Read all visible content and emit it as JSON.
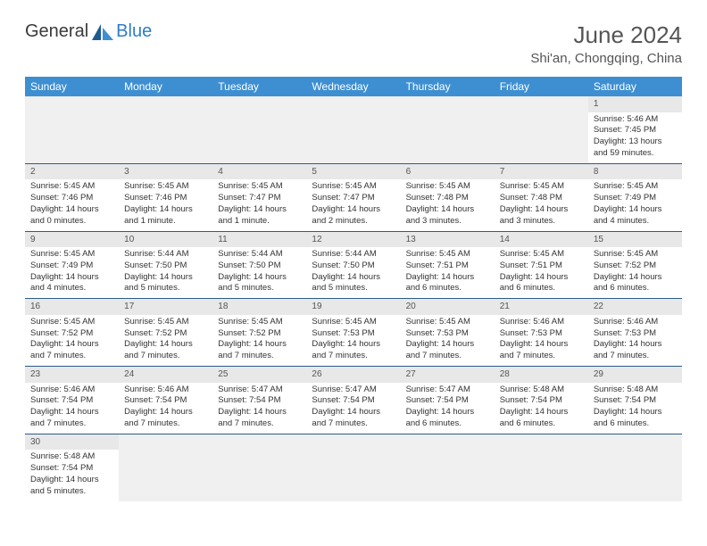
{
  "logo": {
    "text1": "General",
    "text2": "Blue"
  },
  "title": "June 2024",
  "location": "Shi'an, Chongqing, China",
  "theme": {
    "header_bg": "#3e8fd1",
    "header_text": "#ffffff",
    "daynum_bg": "#e8e8e8",
    "border_color": "#2d5a8a",
    "empty_bg": "#f0f0f0",
    "title_color": "#555555",
    "body_text": "#333333"
  },
  "weekdays": [
    "Sunday",
    "Monday",
    "Tuesday",
    "Wednesday",
    "Thursday",
    "Friday",
    "Saturday"
  ],
  "weeks": [
    [
      null,
      null,
      null,
      null,
      null,
      null,
      {
        "d": "1",
        "sr": "5:46 AM",
        "ss": "7:45 PM",
        "dl": "13 hours and 59 minutes."
      }
    ],
    [
      {
        "d": "2",
        "sr": "5:45 AM",
        "ss": "7:46 PM",
        "dl": "14 hours and 0 minutes."
      },
      {
        "d": "3",
        "sr": "5:45 AM",
        "ss": "7:46 PM",
        "dl": "14 hours and 1 minute."
      },
      {
        "d": "4",
        "sr": "5:45 AM",
        "ss": "7:47 PM",
        "dl": "14 hours and 1 minute."
      },
      {
        "d": "5",
        "sr": "5:45 AM",
        "ss": "7:47 PM",
        "dl": "14 hours and 2 minutes."
      },
      {
        "d": "6",
        "sr": "5:45 AM",
        "ss": "7:48 PM",
        "dl": "14 hours and 3 minutes."
      },
      {
        "d": "7",
        "sr": "5:45 AM",
        "ss": "7:48 PM",
        "dl": "14 hours and 3 minutes."
      },
      {
        "d": "8",
        "sr": "5:45 AM",
        "ss": "7:49 PM",
        "dl": "14 hours and 4 minutes."
      }
    ],
    [
      {
        "d": "9",
        "sr": "5:45 AM",
        "ss": "7:49 PM",
        "dl": "14 hours and 4 minutes."
      },
      {
        "d": "10",
        "sr": "5:44 AM",
        "ss": "7:50 PM",
        "dl": "14 hours and 5 minutes."
      },
      {
        "d": "11",
        "sr": "5:44 AM",
        "ss": "7:50 PM",
        "dl": "14 hours and 5 minutes."
      },
      {
        "d": "12",
        "sr": "5:44 AM",
        "ss": "7:50 PM",
        "dl": "14 hours and 5 minutes."
      },
      {
        "d": "13",
        "sr": "5:45 AM",
        "ss": "7:51 PM",
        "dl": "14 hours and 6 minutes."
      },
      {
        "d": "14",
        "sr": "5:45 AM",
        "ss": "7:51 PM",
        "dl": "14 hours and 6 minutes."
      },
      {
        "d": "15",
        "sr": "5:45 AM",
        "ss": "7:52 PM",
        "dl": "14 hours and 6 minutes."
      }
    ],
    [
      {
        "d": "16",
        "sr": "5:45 AM",
        "ss": "7:52 PM",
        "dl": "14 hours and 7 minutes."
      },
      {
        "d": "17",
        "sr": "5:45 AM",
        "ss": "7:52 PM",
        "dl": "14 hours and 7 minutes."
      },
      {
        "d": "18",
        "sr": "5:45 AM",
        "ss": "7:52 PM",
        "dl": "14 hours and 7 minutes."
      },
      {
        "d": "19",
        "sr": "5:45 AM",
        "ss": "7:53 PM",
        "dl": "14 hours and 7 minutes."
      },
      {
        "d": "20",
        "sr": "5:45 AM",
        "ss": "7:53 PM",
        "dl": "14 hours and 7 minutes."
      },
      {
        "d": "21",
        "sr": "5:46 AM",
        "ss": "7:53 PM",
        "dl": "14 hours and 7 minutes."
      },
      {
        "d": "22",
        "sr": "5:46 AM",
        "ss": "7:53 PM",
        "dl": "14 hours and 7 minutes."
      }
    ],
    [
      {
        "d": "23",
        "sr": "5:46 AM",
        "ss": "7:54 PM",
        "dl": "14 hours and 7 minutes."
      },
      {
        "d": "24",
        "sr": "5:46 AM",
        "ss": "7:54 PM",
        "dl": "14 hours and 7 minutes."
      },
      {
        "d": "25",
        "sr": "5:47 AM",
        "ss": "7:54 PM",
        "dl": "14 hours and 7 minutes."
      },
      {
        "d": "26",
        "sr": "5:47 AM",
        "ss": "7:54 PM",
        "dl": "14 hours and 7 minutes."
      },
      {
        "d": "27",
        "sr": "5:47 AM",
        "ss": "7:54 PM",
        "dl": "14 hours and 6 minutes."
      },
      {
        "d": "28",
        "sr": "5:48 AM",
        "ss": "7:54 PM",
        "dl": "14 hours and 6 minutes."
      },
      {
        "d": "29",
        "sr": "5:48 AM",
        "ss": "7:54 PM",
        "dl": "14 hours and 6 minutes."
      }
    ],
    [
      {
        "d": "30",
        "sr": "5:48 AM",
        "ss": "7:54 PM",
        "dl": "14 hours and 5 minutes."
      },
      null,
      null,
      null,
      null,
      null,
      null
    ]
  ],
  "labels": {
    "sunrise": "Sunrise:",
    "sunset": "Sunset:",
    "daylight": "Daylight:"
  }
}
